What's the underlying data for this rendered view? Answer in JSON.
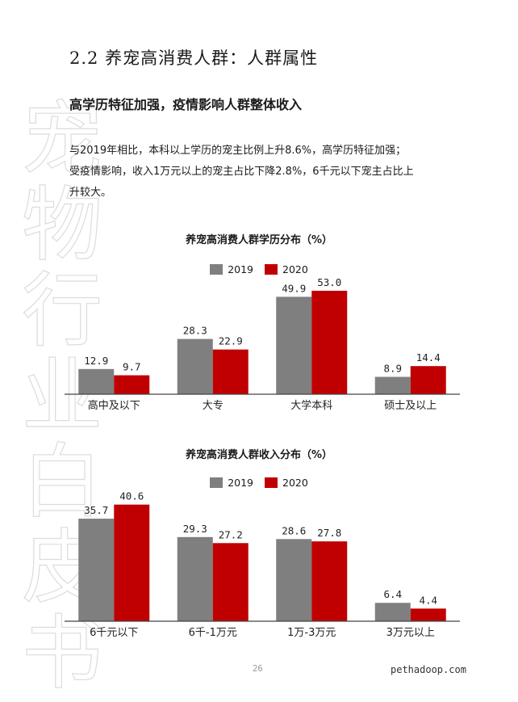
{
  "watermark": {
    "chars": [
      "宠",
      "物",
      "行",
      "业",
      "白",
      "皮",
      "书"
    ]
  },
  "section_title": "2.2 养宠高消费人群：人群属性",
  "sub_heading": "高学历特征加强，疫情影响人群整体收入",
  "body_lines": [
    "与2019年相比，本科以上学历的宠主比例上升8.6%，高学历特征加强；",
    "受疫情影响，收入1万元以上的宠主占比下降2.8%，6千元以下宠主占比上",
    "升较大。"
  ],
  "colors": {
    "series_2019": "#7f7f7f",
    "series_2020": "#c00000",
    "axis": "#444444"
  },
  "chart_data": [
    {
      "type": "bar",
      "title": "养宠高消费人群学历分布（%）",
      "categories": [
        "高中及以下",
        "大专",
        "大学本科",
        "硕士及以上"
      ],
      "series": [
        {
          "name": "2019",
          "values": [
            12.9,
            28.3,
            49.9,
            8.9
          ]
        },
        {
          "name": "2020",
          "values": [
            9.7,
            22.9,
            53.0,
            14.4
          ]
        }
      ],
      "value_labels": [
        [
          "12.9",
          "28.3",
          "49.9",
          "8.9"
        ],
        [
          "9.7",
          "22.9",
          "53.0",
          "14.4"
        ]
      ],
      "ylim": [
        0,
        60
      ],
      "grid": false,
      "legend": "top-center"
    },
    {
      "type": "bar",
      "title": "养宠高消费人群收入分布（%）",
      "categories": [
        "6千元以下",
        "6千-1万元",
        "1万-3万元",
        "3万元以上"
      ],
      "series": [
        {
          "name": "2019",
          "values": [
            35.7,
            29.3,
            28.6,
            6.4
          ]
        },
        {
          "name": "2020",
          "values": [
            40.6,
            27.2,
            27.8,
            4.4
          ]
        }
      ],
      "value_labels": [
        [
          "35.7",
          "29.3",
          "28.6",
          "6.4"
        ],
        [
          "40.6",
          "27.2",
          "27.8",
          "4.4"
        ]
      ],
      "ylim": [
        0,
        45
      ],
      "grid": false,
      "legend": "top-center"
    }
  ],
  "footer": {
    "page_number": "26",
    "site": "pethadoop.com"
  }
}
